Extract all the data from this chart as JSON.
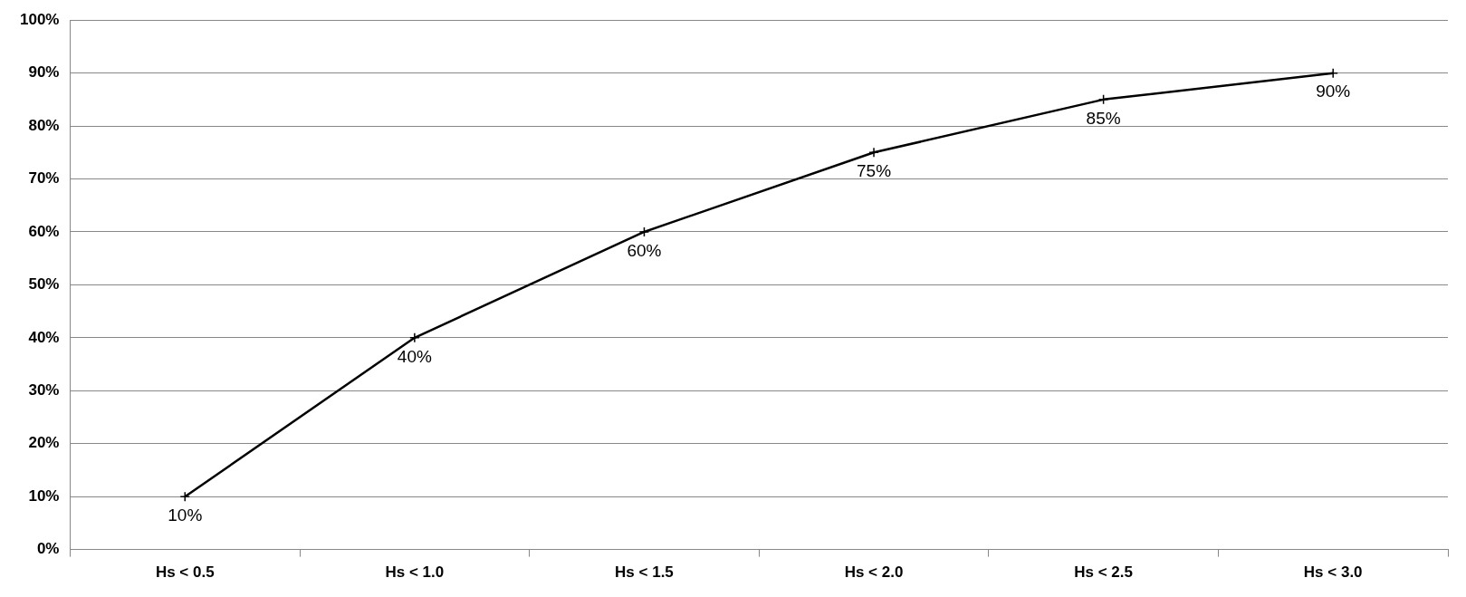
{
  "chart_data": {
    "type": "line",
    "categories": [
      "Hs < 0.5",
      "Hs < 1.0",
      "Hs < 1.5",
      "Hs < 2.0",
      "Hs < 2.5",
      "Hs < 3.0"
    ],
    "series": [
      {
        "color": "#000000",
        "values": [
          10,
          40,
          60,
          75,
          85,
          90
        ],
        "value_labels": [
          "10%",
          "40%",
          "60%",
          "75%",
          "85%",
          "90%"
        ]
      }
    ],
    "ylim": [
      0,
      100
    ],
    "yticks": [
      {
        "value": 0,
        "label": "0%"
      },
      {
        "value": 10,
        "label": "10%"
      },
      {
        "value": 20,
        "label": "20%"
      },
      {
        "value": 30,
        "label": "30%"
      },
      {
        "value": 40,
        "label": "40%"
      },
      {
        "value": 50,
        "label": "50%"
      },
      {
        "value": 60,
        "label": "60%"
      },
      {
        "value": 70,
        "label": "70%"
      },
      {
        "value": 80,
        "label": "80%"
      },
      {
        "value": 90,
        "label": "90%"
      },
      {
        "value": 100,
        "label": "100%"
      }
    ],
    "grid": "y",
    "legend": false,
    "marker": "cross",
    "line_style": "solid"
  }
}
